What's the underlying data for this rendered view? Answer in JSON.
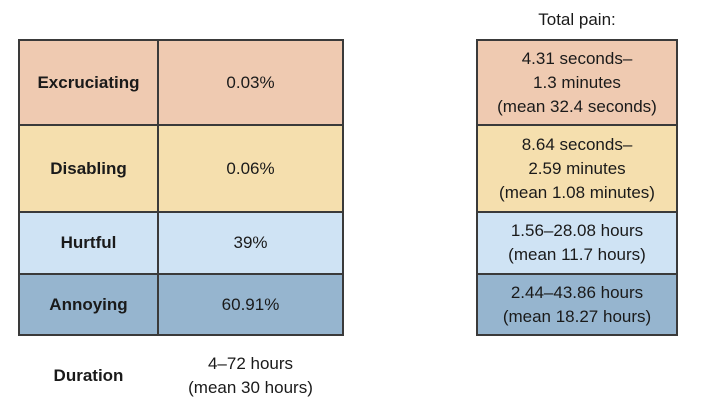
{
  "left_table": {
    "rows": [
      {
        "label": "Excruciating",
        "value": "0.03%",
        "color": "#efcab1"
      },
      {
        "label": "Disabling",
        "value": "0.06%",
        "color": "#f5dfae"
      },
      {
        "label": "Hurtful",
        "value": "39%",
        "color": "#cfe3f4"
      },
      {
        "label": "Annoying",
        "value": "60.91%",
        "color": "#96b5cf"
      }
    ],
    "duration": {
      "label": "Duration",
      "line1": "4–72 hours",
      "line2": "(mean 30 hours)"
    }
  },
  "right_table": {
    "title": "Total pain:",
    "rows": [
      {
        "lines": [
          "4.31 seconds–",
          "1.3 minutes",
          "(mean 32.4 seconds)"
        ]
      },
      {
        "lines": [
          "8.64 seconds–",
          "2.59 minutes",
          "(mean 1.08 minutes)"
        ]
      },
      {
        "lines": [
          "1.56–28.08 hours",
          "(mean 11.7 hours)"
        ]
      },
      {
        "lines": [
          "2.44–43.86 hours",
          "(mean 18.27 hours)"
        ]
      }
    ]
  }
}
